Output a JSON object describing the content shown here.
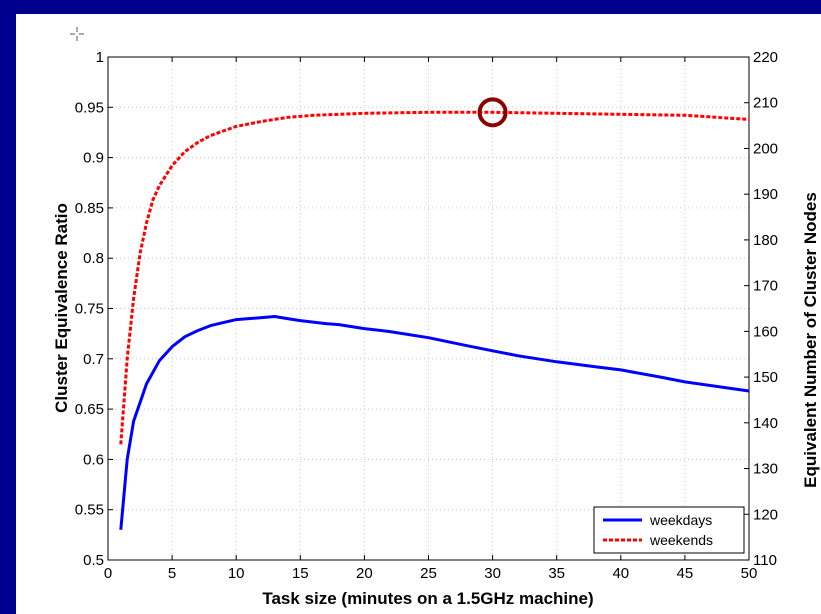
{
  "chart_data": {
    "type": "line",
    "title": "",
    "xlabel": "Task size (minutes on a 1.5GHz machine)",
    "ylabel": "Cluster Equivalence Ratio",
    "y2label": "Equivalent Number of Cluster Nodes",
    "xlim": [
      0,
      50
    ],
    "ylim": [
      0.5,
      1
    ],
    "y2lim": [
      110,
      220
    ],
    "xticks": [
      "0",
      "5",
      "10",
      "15",
      "20",
      "25",
      "30",
      "35",
      "40",
      "45",
      "50"
    ],
    "yticks": [
      "0.5",
      "0.55",
      "0.6",
      "0.65",
      "0.7",
      "0.75",
      "0.8",
      "0.85",
      "0.9",
      "0.95",
      "1"
    ],
    "y2ticks": [
      "110",
      "120",
      "130",
      "140",
      "150",
      "160",
      "170",
      "180",
      "190",
      "200",
      "210",
      "220"
    ],
    "grid": true,
    "legend_position": "bottom-right",
    "series": [
      {
        "name": "weekdays",
        "color": "#0000ff",
        "style": "solid",
        "x": [
          1,
          1.5,
          2,
          3,
          4,
          5,
          6,
          7,
          8,
          10,
          12,
          13,
          14,
          15,
          17,
          18,
          20,
          22,
          25,
          28,
          30,
          32,
          35,
          38,
          40,
          43,
          45,
          50
        ],
        "y": [
          0.53,
          0.6,
          0.638,
          0.675,
          0.698,
          0.712,
          0.722,
          0.728,
          0.733,
          0.739,
          0.741,
          0.742,
          0.74,
          0.738,
          0.735,
          0.734,
          0.73,
          0.727,
          0.721,
          0.713,
          0.708,
          0.703,
          0.697,
          0.692,
          0.689,
          0.682,
          0.677,
          0.668
        ]
      },
      {
        "name": "weekends",
        "color": "#ff0000",
        "style": "dashed",
        "x": [
          1,
          1.5,
          2,
          2.5,
          3,
          3.5,
          4,
          5,
          6,
          7,
          8,
          10,
          12,
          14,
          16,
          20,
          25,
          30,
          35,
          40,
          45,
          50
        ],
        "y": [
          0.615,
          0.7,
          0.76,
          0.805,
          0.835,
          0.858,
          0.872,
          0.892,
          0.906,
          0.915,
          0.922,
          0.931,
          0.936,
          0.94,
          0.942,
          0.944,
          0.945,
          0.945,
          0.944,
          0.943,
          0.942,
          0.938
        ]
      }
    ],
    "annotations": [
      {
        "type": "circle-marker",
        "color": "#8b0000",
        "x": 30,
        "y": 0.945
      }
    ],
    "crosshair_icon": "crosshair-cursor-icon"
  }
}
